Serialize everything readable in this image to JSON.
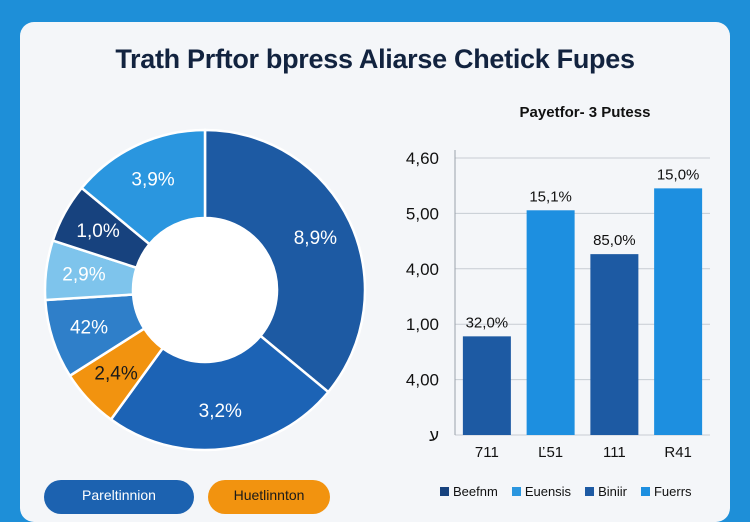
{
  "header": {
    "title": "Trath Prftor bpress Aliarse Chetick Fupes"
  },
  "colors": {
    "dark_blue": "#1d5aa3",
    "navy": "#17427e",
    "mid_blue": "#2d88d6",
    "light_blue": "#7ec4ec",
    "orange": "#f2930f",
    "bar_blue": "#1d8fe0",
    "background": "#1e8fd8"
  },
  "footer": {
    "pill_left": "Pareltinnion",
    "pill_right": "Huetlinnton"
  },
  "chart_data": [
    {
      "type": "pie",
      "title": "",
      "slices": [
        {
          "label": "8,9%",
          "value": 36,
          "color": "#1d5aa3"
        },
        {
          "label": "3,2%",
          "value": 24,
          "color": "#1c63b5"
        },
        {
          "label": "2,4%",
          "value": 6,
          "color": "#f2930f"
        },
        {
          "label": "42%",
          "value": 8,
          "color": "#2f7fc9"
        },
        {
          "label": "2,9%",
          "value": 6,
          "color": "#7ec4ec"
        },
        {
          "label": "1,0%",
          "value": 6,
          "color": "#17427e"
        },
        {
          "label": "3,9%",
          "value": 14,
          "color": "#2a96df"
        }
      ]
    },
    {
      "type": "bar",
      "title": "Payetfor- 3 Putess",
      "categories": [
        "711",
        "Ľ51",
        "111",
        "R41"
      ],
      "values": [
        1.8,
        4.1,
        3.3,
        4.5
      ],
      "data_labels": [
        "32,0%",
        "15,1%",
        "85,0%",
        "15,0%"
      ],
      "y_tick_labels": [
        "4,60",
        "5,00",
        "4,00",
        "1,00",
        "4,00",
        "ע"
      ],
      "ylim": [
        0,
        5.2
      ],
      "grid": true,
      "legend": [
        "Beefnm",
        "Euensis",
        "Biniir",
        "Fuerrs"
      ],
      "legend_colors": [
        "#17427e",
        "#2a96df",
        "#1d5aa3",
        "#1d8fe0"
      ]
    }
  ]
}
